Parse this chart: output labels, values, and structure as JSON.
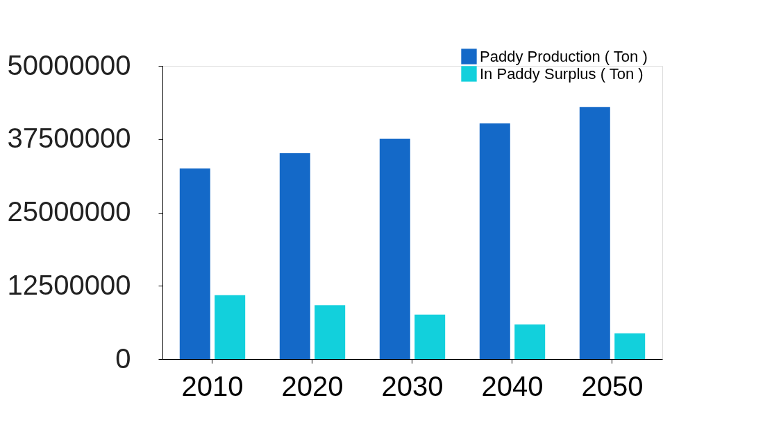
{
  "chart_data": {
    "type": "bar",
    "categories": [
      "2010",
      "2020",
      "2030",
      "2040",
      "2050"
    ],
    "series": [
      {
        "name": "Paddy Production ( Ton )",
        "color": "#1469c8",
        "values": [
          32500000,
          35100000,
          37600000,
          40200000,
          43000000
        ]
      },
      {
        "name": "In Paddy Surplus ( Ton )",
        "color": "#12d0dc",
        "values": [
          10900000,
          9200000,
          7600000,
          5900000,
          4400000
        ]
      }
    ],
    "ylim": [
      0,
      50000000
    ],
    "yticks": [
      0,
      12500000,
      25000000,
      37500000,
      50000000
    ],
    "grid": false,
    "legend": "top right"
  }
}
